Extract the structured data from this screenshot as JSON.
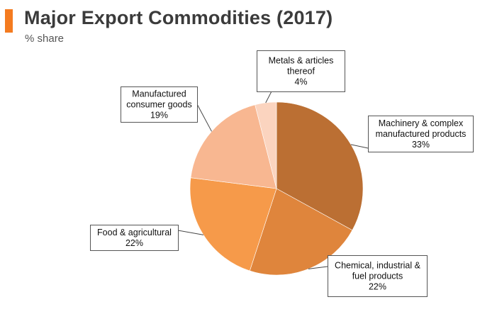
{
  "title": "Major Export Commodities (2017)",
  "subtitle": "% share",
  "colors": {
    "accent": "#f47b20",
    "title": "#3b3b3b"
  },
  "chart_data": {
    "type": "pie",
    "title": "Major Export Commodities (2017)",
    "subtitle": "% share",
    "unit": "%",
    "slices": [
      {
        "name": "Machinery & complex manufactured products",
        "label_lines": [
          "Machinery & complex",
          "manufactured products"
        ],
        "value": 33,
        "value_label": "33%",
        "color": "#bb6f33"
      },
      {
        "name": "Chemical, industrial & fuel products",
        "label_lines": [
          "Chemical, industrial &",
          "fuel products"
        ],
        "value": 22,
        "value_label": "22%",
        "color": "#df853c"
      },
      {
        "name": "Food & agricultural",
        "label_lines": [
          "Food & agricultural"
        ],
        "value": 22,
        "value_label": "22%",
        "color": "#f69a4a"
      },
      {
        "name": "Manufactured consumer goods",
        "label_lines": [
          "Manufactured",
          "consumer goods"
        ],
        "value": 19,
        "value_label": "19%",
        "color": "#f8b791"
      },
      {
        "name": "Metals & articles thereof",
        "label_lines": [
          "Metals & articles",
          "thereof"
        ],
        "value": 4,
        "value_label": "4%",
        "color": "#fbd4bf"
      }
    ]
  }
}
